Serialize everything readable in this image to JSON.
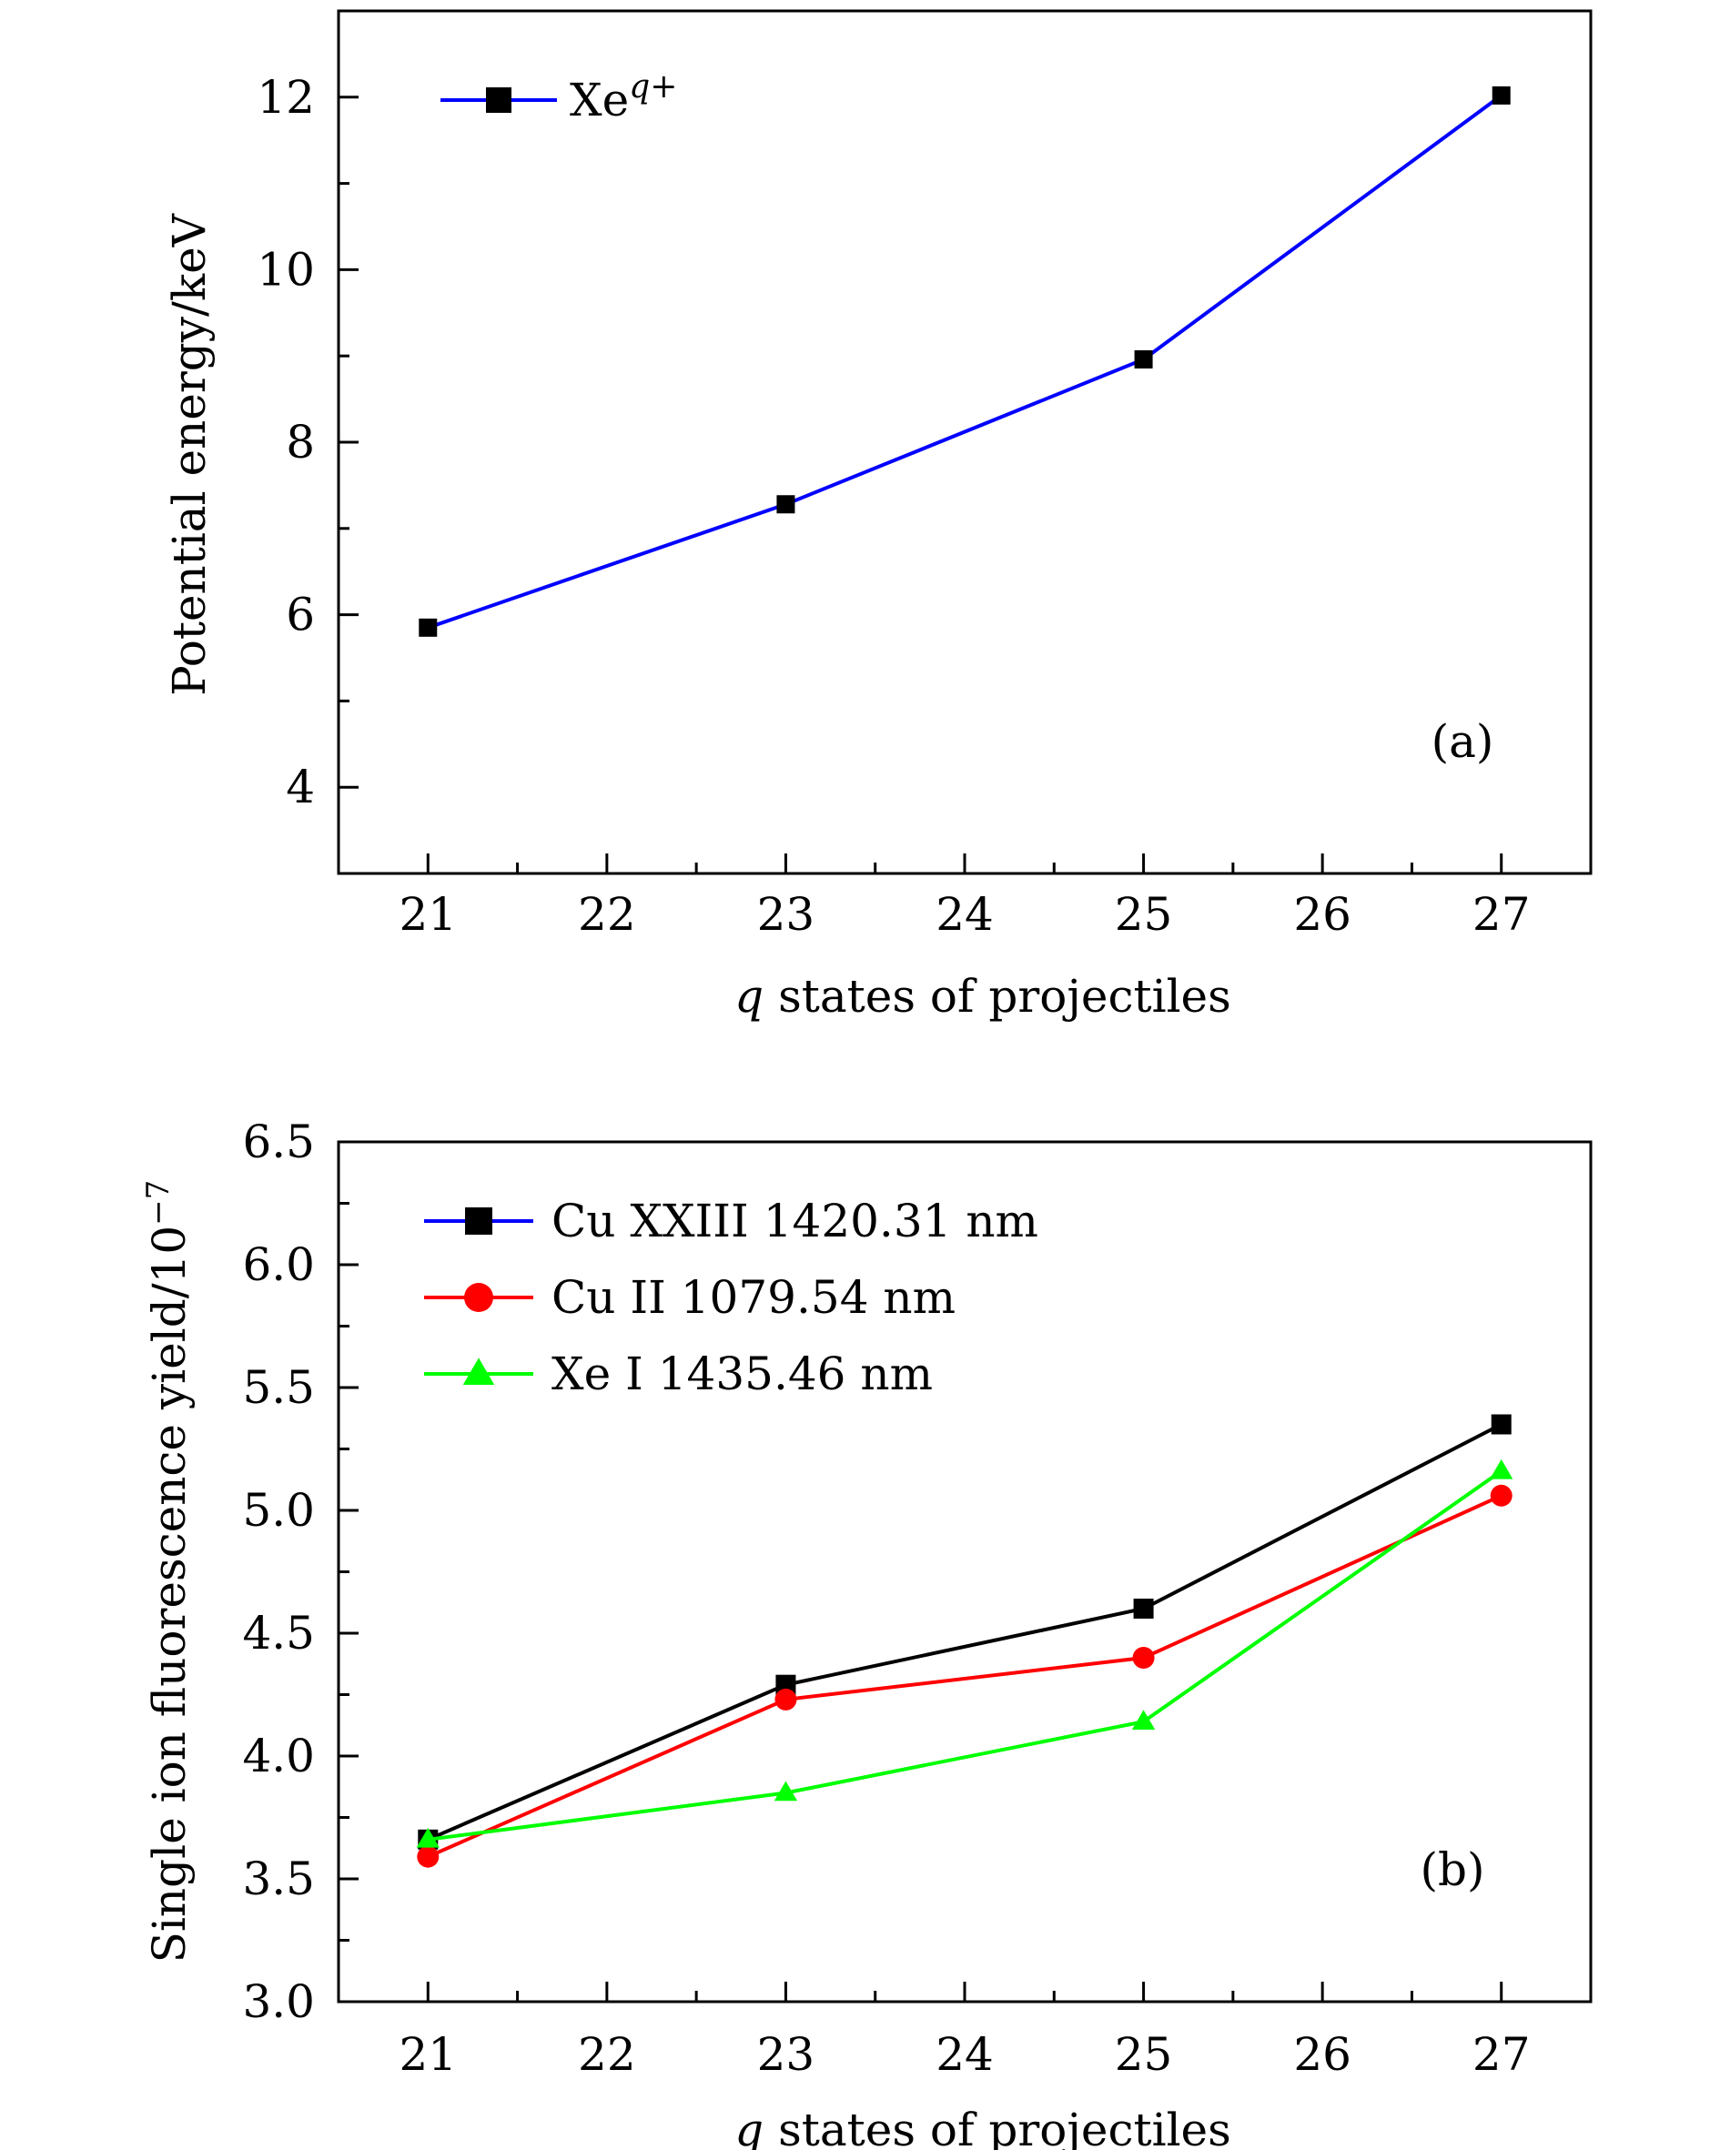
{
  "chart_data": [
    {
      "type": "line",
      "panel_label": "(a)",
      "xlabel_var": "q",
      "xlabel_text": " states of projectiles",
      "ylabel": "Potential energy/keV",
      "xlim": [
        20.5,
        27.5
      ],
      "ylim": [
        3,
        13
      ],
      "xticks": [
        21,
        22,
        23,
        24,
        25,
        26,
        27
      ],
      "xtick_labels": [
        "21",
        "22",
        "23",
        "24",
        "25",
        "26",
        "27"
      ],
      "yticks": [
        4,
        6,
        8,
        10,
        12
      ],
      "ytick_labels": [
        "4",
        "6",
        "8",
        "10",
        "12"
      ],
      "legend_position": "top-left",
      "series": [
        {
          "name_base": "Xe",
          "name_sup": "q+",
          "color": "#0000ff",
          "marker": "square",
          "marker_color": "#000000",
          "x": [
            21,
            23,
            25,
            27
          ],
          "y": [
            5.85,
            7.28,
            8.96,
            12.02
          ]
        }
      ]
    },
    {
      "type": "line",
      "panel_label": "(b)",
      "xlabel_var": "q",
      "xlabel_text": " states of projectiles",
      "ylabel_base": "Single ion fluorescence yield/10",
      "ylabel_sup": "−7",
      "xlim": [
        20.5,
        27.5
      ],
      "ylim": [
        3.0,
        6.5
      ],
      "xticks": [
        21,
        22,
        23,
        24,
        25,
        26,
        27
      ],
      "xtick_labels": [
        "21",
        "22",
        "23",
        "24",
        "25",
        "26",
        "27"
      ],
      "yticks": [
        3.0,
        3.5,
        4.0,
        4.5,
        5.0,
        5.5,
        6.0,
        6.5
      ],
      "ytick_labels": [
        "3.0",
        "3.5",
        "4.0",
        "4.5",
        "5.0",
        "5.5",
        "6.0",
        "6.5"
      ],
      "legend_position": "top-left",
      "series": [
        {
          "name": "Cu XXIII 1420.31 nm",
          "color": "#000000",
          "legend_line_color": "#0000ff",
          "marker": "square",
          "marker_color": "#000000",
          "x": [
            21,
            23,
            25,
            27
          ],
          "y": [
            3.66,
            4.29,
            4.6,
            5.35
          ]
        },
        {
          "name": "Cu II 1079.54 nm",
          "color": "#ff0000",
          "legend_line_color": "#ff0000",
          "marker": "circle",
          "marker_color": "#ff0000",
          "x": [
            21,
            23,
            25,
            27
          ],
          "y": [
            3.59,
            4.23,
            4.4,
            5.06
          ]
        },
        {
          "name": "Xe I  1435.46 nm",
          "color": "#00ff00",
          "legend_line_color": "#00ff00",
          "marker": "triangle",
          "marker_color": "#00ff00",
          "x": [
            21,
            23,
            25,
            27
          ],
          "y": [
            3.66,
            3.85,
            4.14,
            5.16
          ]
        }
      ]
    }
  ]
}
